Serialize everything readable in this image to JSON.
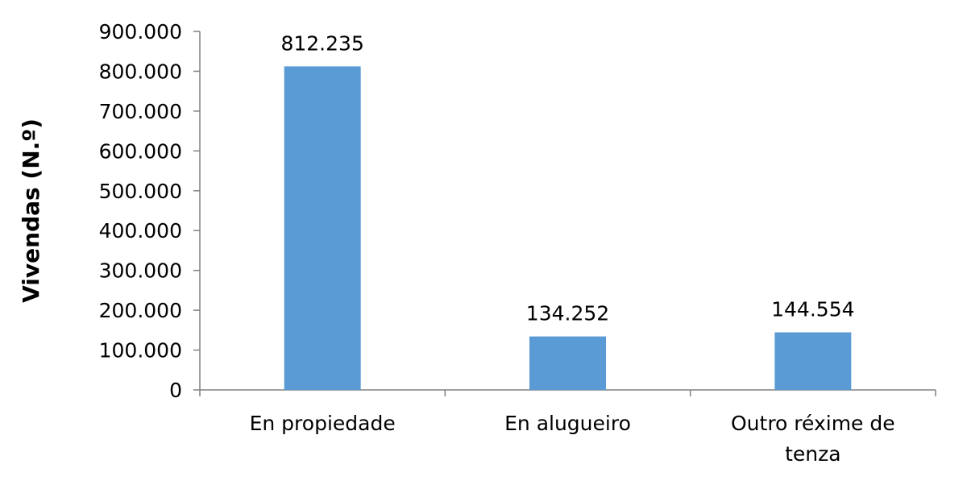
{
  "chart_data": {
    "type": "bar",
    "title": "",
    "xlabel": "",
    "ylabel": "Vivendas (N.º)",
    "ylim": [
      0,
      900000
    ],
    "yticks": [
      0,
      100000,
      200000,
      300000,
      400000,
      500000,
      600000,
      700000,
      800000,
      900000
    ],
    "ytick_labels": [
      "0",
      "100.000",
      "200.000",
      "300.000",
      "400.000",
      "500.000",
      "600.000",
      "700.000",
      "800.000",
      "900.000"
    ],
    "categories": [
      [
        "En propiedade"
      ],
      [
        "En alugueiro"
      ],
      [
        "Outro réxime de",
        "tenza"
      ]
    ],
    "values": [
      812235,
      134252,
      144554
    ],
    "value_labels": [
      "812.235",
      "134.252",
      "144.554"
    ],
    "bar_color": "#5b9bd5",
    "axis_color": "#808080",
    "grid": false,
    "legend": "none"
  }
}
